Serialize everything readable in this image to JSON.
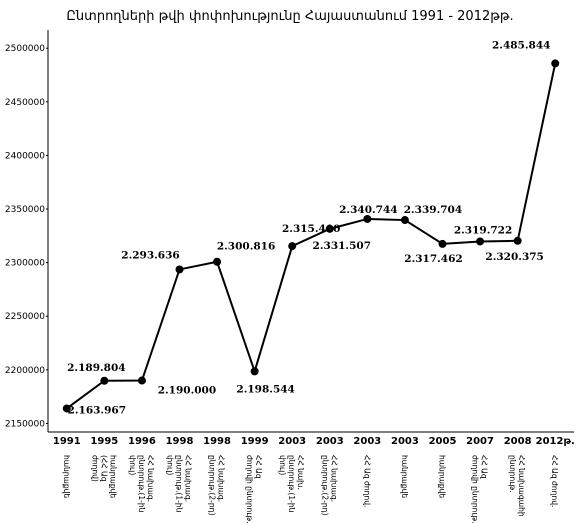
{
  "chart_data": {
    "type": "line",
    "title": "Ընտրողների թվի փոփոխությունը Հայաստանում 1991 - 2012թթ.",
    "categories": [
      "1991",
      "1995",
      "1996",
      "1998",
      "1998",
      "1999",
      "2003",
      "2003",
      "2003",
      "2003",
      "2005",
      "2007",
      "2008",
      "2012թ."
    ],
    "sublabels": [
      [
        "հանրաքվե"
      ],
      [
        "հանրաքվե",
        "(ՀՀ Ազ",
        "ժողով)"
      ],
      [
        "ՀՀ նախագ.",
        "ընտրութ.(1-ին",
        "փուլ)"
      ],
      [
        "ՀՀ նախագ.",
        "ընտրութ.(1-ին",
        "փուլ)"
      ],
      [
        "ՀՀ նախագ.",
        "ընտրութ.(2-րդ)"
      ],
      [
        "ՀՀ Ազ",
        "ժողովի ընտրութ."
      ],
      [
        "ՀՀ նախ.",
        "ընտրութ.(1-ին",
        "փուլ)"
      ],
      [
        "ՀՀ նախագ.",
        "ընտրութ.(2-րդ)"
      ],
      [
        "ՀՀ Ազ ժողով."
      ],
      [
        "հանրաքվե"
      ],
      [
        "հանրաքվե"
      ],
      [
        "ՀՀ Ազ",
        "ժողովի ընտրութ."
      ],
      [
        "ՀՀ նախագահի",
        "ընտրութ."
      ],
      [
        "ՀՀ Ազ ժողով."
      ]
    ],
    "values": [
      2163967,
      2189804,
      2190000,
      2293636,
      2300816,
      2198544,
      2315410,
      2331507,
      2340744,
      2339704,
      2317462,
      2319722,
      2320375,
      2485844
    ],
    "value_labels": [
      "2.163.967",
      "2.189.804",
      "2.190.000",
      "2.293.636",
      "2.300.816",
      "2.198.544",
      "2.315.410",
      "2.331.507",
      "2.340.744",
      "2.339.704",
      "2.317.462",
      "2.319.722",
      "2.320.375",
      "2.485.844"
    ],
    "color": "#000000",
    "ylim": [
      2142000,
      2517000
    ],
    "yticks": [
      2150000,
      2200000,
      2250000,
      2300000,
      2350000,
      2400000,
      2450000,
      2500000
    ]
  }
}
